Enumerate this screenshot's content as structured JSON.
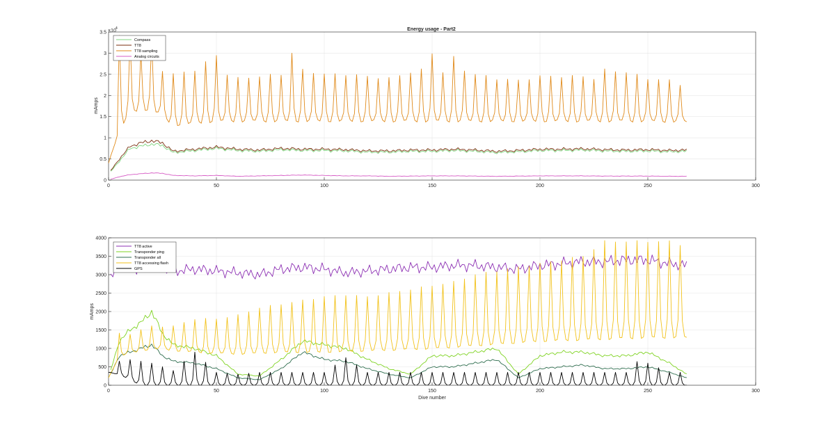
{
  "chart_data": [
    {
      "type": "line",
      "title": "Energy usage - Part2",
      "xlabel": "",
      "ylabel": "mAmps",
      "y_exponent_label": "×10",
      "y_exponent_power": "4",
      "xlim": [
        0,
        300
      ],
      "ylim": [
        0,
        35000
      ],
      "xticks": [
        0,
        50,
        100,
        150,
        200,
        250,
        300
      ],
      "yticks": [
        0,
        5000,
        10000,
        15000,
        20000,
        25000,
        30000,
        35000
      ],
      "ytick_labels": [
        "0",
        "0.5",
        "1",
        "1.5",
        "2",
        "2.5",
        "3",
        "3.5"
      ],
      "grid": true,
      "legend_position": "top-left",
      "series": [
        {
          "name": "Compass",
          "color": "#7fd47f",
          "style": "smooth",
          "x": [
            1,
            5,
            10,
            15,
            20,
            25,
            30,
            40,
            50,
            60,
            70,
            80,
            90,
            100,
            110,
            120,
            130,
            140,
            150,
            160,
            170,
            180,
            190,
            200,
            210,
            220,
            230,
            240,
            250,
            260,
            268
          ],
          "y": [
            2000,
            4500,
            7500,
            8000,
            8500,
            8200,
            6500,
            7000,
            7500,
            7000,
            6800,
            7200,
            7000,
            7000,
            6900,
            6600,
            6600,
            6800,
            6800,
            7000,
            6800,
            6500,
            6700,
            7000,
            7000,
            7100,
            6900,
            6800,
            6900,
            6700,
            6800
          ]
        },
        {
          "name": "TT8",
          "color": "#7a2e0e",
          "style": "smooth",
          "x": [
            1,
            5,
            10,
            15,
            20,
            25,
            30,
            40,
            50,
            60,
            70,
            80,
            90,
            100,
            110,
            120,
            130,
            140,
            150,
            160,
            170,
            180,
            190,
            200,
            210,
            220,
            230,
            240,
            250,
            260,
            268
          ],
          "y": [
            2200,
            5000,
            8000,
            8800,
            9300,
            8800,
            6800,
            7300,
            7800,
            7300,
            7100,
            7500,
            7300,
            7300,
            7200,
            6900,
            6900,
            7100,
            7100,
            7300,
            7100,
            6800,
            7000,
            7300,
            7300,
            7400,
            7200,
            7100,
            7200,
            7000,
            7100
          ]
        },
        {
          "name": "TT8 sampling",
          "color": "#e08a1a",
          "style": "spiky",
          "x_start": 5,
          "x_end": 268,
          "period": 5,
          "base": [
            [
              0,
              4000
            ],
            [
              5,
              12000
            ],
            [
              10,
              16000
            ],
            [
              20,
              17000
            ],
            [
              30,
              13000
            ],
            [
              50,
              14000
            ],
            [
              100,
              14000
            ],
            [
              150,
              14000
            ],
            [
              200,
              14000
            ],
            [
              250,
              14000
            ],
            [
              268,
              13800
            ]
          ],
          "peaks": [
            [
              10,
              34000
            ],
            [
              15,
              30000
            ],
            [
              20,
              33000
            ],
            [
              25,
              26000
            ],
            [
              30,
              25000
            ],
            [
              40,
              26000
            ],
            [
              50,
              29500
            ],
            [
              55,
              25000
            ],
            [
              60,
              24000
            ],
            [
              70,
              24500
            ],
            [
              80,
              25000
            ],
            [
              85,
              30000
            ],
            [
              90,
              26000
            ],
            [
              100,
              25000
            ],
            [
              110,
              25000
            ],
            [
              120,
              24500
            ],
            [
              130,
              24000
            ],
            [
              140,
              25500
            ],
            [
              145,
              26000
            ],
            [
              150,
              30000
            ],
            [
              155,
              25500
            ],
            [
              160,
              29000
            ],
            [
              165,
              26000
            ],
            [
              170,
              25000
            ],
            [
              180,
              24000
            ],
            [
              190,
              23500
            ],
            [
              200,
              24500
            ],
            [
              210,
              24500
            ],
            [
              220,
              24500
            ],
            [
              225,
              24000
            ],
            [
              230,
              26000
            ],
            [
              240,
              25500
            ],
            [
              250,
              24000
            ],
            [
              260,
              23500
            ],
            [
              266,
              22500
            ]
          ]
        },
        {
          "name": "Analog circuits",
          "color": "#d65cc5",
          "style": "smooth",
          "x": [
            1,
            5,
            10,
            15,
            20,
            25,
            30,
            40,
            50,
            60,
            70,
            80,
            90,
            100,
            110,
            120,
            130,
            140,
            150,
            160,
            170,
            180,
            190,
            200,
            210,
            220,
            230,
            240,
            250,
            260,
            268
          ],
          "y": [
            200,
            800,
            1300,
            1500,
            1700,
            1600,
            1100,
            1000,
            1100,
            900,
            1000,
            1100,
            1200,
            1100,
            1000,
            1000,
            900,
            950,
            1000,
            1000,
            950,
            900,
            950,
            1000,
            1000,
            1000,
            950,
            950,
            950,
            900,
            900
          ]
        }
      ]
    },
    {
      "type": "line",
      "title": "",
      "xlabel": "Dive number",
      "ylabel": "mAmps",
      "xlim": [
        0,
        300
      ],
      "ylim": [
        0,
        4000
      ],
      "xticks": [
        0,
        50,
        100,
        150,
        200,
        250,
        300
      ],
      "yticks": [
        0,
        500,
        1000,
        1500,
        2000,
        2500,
        3000,
        3500,
        4000
      ],
      "ytick_labels": [
        "0",
        "500",
        "1000",
        "1500",
        "2000",
        "2500",
        "3000",
        "3500",
        "4000"
      ],
      "grid": true,
      "legend_position": "top-left",
      "series": [
        {
          "name": "TT8 active",
          "color": "#8c2fb3",
          "style": "smooth",
          "x": [
            1,
            5,
            10,
            15,
            20,
            25,
            30,
            40,
            50,
            60,
            70,
            80,
            90,
            100,
            110,
            120,
            130,
            140,
            150,
            160,
            170,
            180,
            190,
            200,
            210,
            220,
            230,
            240,
            250,
            260,
            268
          ],
          "y": [
            2900,
            3250,
            3200,
            3150,
            3300,
            3200,
            3100,
            3150,
            3100,
            3050,
            3000,
            3150,
            3200,
            3150,
            3050,
            3100,
            3150,
            3200,
            3200,
            3250,
            3250,
            3200,
            3150,
            3250,
            3300,
            3350,
            3350,
            3400,
            3400,
            3300,
            3250
          ]
        },
        {
          "name": "Transponder ping",
          "color": "#7ed321",
          "style": "smooth",
          "x": [
            1,
            5,
            10,
            15,
            20,
            25,
            30,
            40,
            50,
            60,
            70,
            80,
            90,
            100,
            110,
            120,
            130,
            140,
            150,
            160,
            170,
            180,
            190,
            200,
            210,
            220,
            230,
            240,
            250,
            260,
            268
          ],
          "y": [
            400,
            1200,
            1500,
            1700,
            2000,
            1400,
            1100,
            1000,
            800,
            300,
            250,
            700,
            1200,
            1100,
            1000,
            700,
            450,
            300,
            800,
            800,
            900,
            1000,
            300,
            800,
            900,
            900,
            800,
            800,
            900,
            600,
            300
          ]
        },
        {
          "name": "Transponder all",
          "color": "#2f6e4f",
          "style": "smooth",
          "x": [
            1,
            5,
            10,
            15,
            20,
            25,
            30,
            40,
            50,
            60,
            70,
            80,
            90,
            100,
            110,
            120,
            130,
            140,
            150,
            160,
            170,
            180,
            190,
            200,
            210,
            220,
            230,
            240,
            250,
            260,
            268
          ],
          "y": [
            300,
            800,
            900,
            1000,
            1100,
            800,
            650,
            600,
            450,
            200,
            150,
            450,
            900,
            700,
            650,
            450,
            300,
            200,
            500,
            500,
            600,
            700,
            200,
            450,
            500,
            550,
            450,
            450,
            500,
            350,
            200
          ]
        },
        {
          "name": "TT8 accessing flash",
          "color": "#f2c21b",
          "style": "spiky",
          "x_start": 5,
          "x_end": 268,
          "period": 5,
          "base": [
            [
              0,
              200
            ],
            [
              5,
              800
            ],
            [
              20,
              1000
            ],
            [
              40,
              900
            ],
            [
              60,
              850
            ],
            [
              80,
              900
            ],
            [
              100,
              900
            ],
            [
              150,
              1000
            ],
            [
              200,
              1200
            ],
            [
              250,
              1300
            ],
            [
              268,
              1300
            ]
          ],
          "peaks": [
            [
              10,
              1400
            ],
            [
              20,
              1600
            ],
            [
              30,
              1600
            ],
            [
              40,
              1800
            ],
            [
              50,
              1800
            ],
            [
              60,
              1900
            ],
            [
              70,
              2100
            ],
            [
              80,
              2200
            ],
            [
              90,
              2300
            ],
            [
              100,
              2400
            ],
            [
              110,
              2450
            ],
            [
              120,
              2400
            ],
            [
              130,
              2500
            ],
            [
              140,
              2600
            ],
            [
              150,
              2700
            ],
            [
              160,
              2800
            ],
            [
              170,
              3000
            ],
            [
              180,
              3100
            ],
            [
              190,
              3200
            ],
            [
              200,
              3300
            ],
            [
              210,
              3400
            ],
            [
              220,
              3500
            ],
            [
              230,
              3900
            ],
            [
              240,
              3900
            ],
            [
              250,
              3900
            ],
            [
              260,
              3900
            ],
            [
              266,
              3800
            ]
          ]
        },
        {
          "name": "GPS",
          "color": "#000000",
          "style": "spiky",
          "x_start": 5,
          "x_end": 268,
          "period": 5,
          "base": [
            [
              0,
              350
            ],
            [
              5,
              300
            ],
            [
              15,
              0
            ],
            [
              268,
              0
            ]
          ],
          "peaks": [
            [
              5,
              650
            ],
            [
              10,
              700
            ],
            [
              20,
              600
            ],
            [
              30,
              400
            ],
            [
              40,
              900
            ],
            [
              50,
              350
            ],
            [
              60,
              300
            ],
            [
              70,
              350
            ],
            [
              80,
              350
            ],
            [
              90,
              350
            ],
            [
              100,
              350
            ],
            [
              110,
              750
            ],
            [
              120,
              350
            ],
            [
              130,
              350
            ],
            [
              140,
              350
            ],
            [
              150,
              350
            ],
            [
              160,
              350
            ],
            [
              170,
              350
            ],
            [
              180,
              350
            ],
            [
              190,
              350
            ],
            [
              200,
              350
            ],
            [
              210,
              350
            ],
            [
              220,
              350
            ],
            [
              230,
              350
            ],
            [
              240,
              350
            ],
            [
              246,
              700
            ],
            [
              260,
              350
            ],
            [
              266,
              350
            ]
          ]
        }
      ]
    }
  ]
}
